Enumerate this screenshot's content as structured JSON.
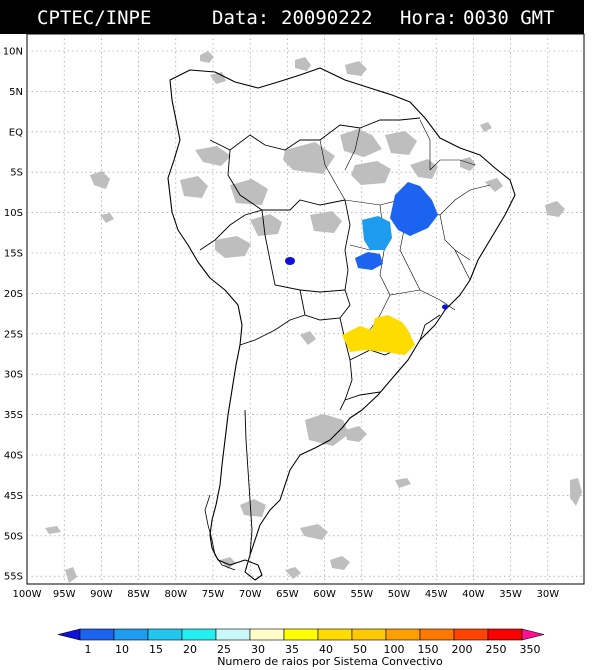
{
  "header": {
    "source": "CPTEC/INPE",
    "date_label": "Data:",
    "date_value": "20090222",
    "time_label": "Hora:",
    "time_value": "0030 GMT"
  },
  "axes": {
    "lat_labels": [
      "10N",
      "5N",
      "EQ",
      "5S",
      "10S",
      "15S",
      "20S",
      "25S",
      "30S",
      "35S",
      "40S",
      "45S",
      "50S",
      "55S"
    ],
    "lon_labels": [
      "100W",
      "95W",
      "90W",
      "85W",
      "80W",
      "75W",
      "70W",
      "65W",
      "60W",
      "55W",
      "50W",
      "45W",
      "40W",
      "35W",
      "30W"
    ]
  },
  "colorbar": {
    "title": "Numero de raios por Sistema Convectivo",
    "ticks": [
      "1",
      "10",
      "15",
      "20",
      "25",
      "30",
      "35",
      "40",
      "50",
      "100",
      "150",
      "200",
      "250",
      "350"
    ],
    "colors": [
      "#1010dd",
      "#1c64f0",
      "#1e9cf0",
      "#20c8f0",
      "#22f0f0",
      "#c8f8f8",
      "#fffec8",
      "#ffff00",
      "#ffdc00",
      "#ffc800",
      "#ffa000",
      "#ff7800",
      "#ff4400",
      "#ff0000",
      "#ff1090"
    ]
  },
  "legend_colors": {
    "cloud_gray": "#bebebe",
    "frame": "#000000"
  }
}
